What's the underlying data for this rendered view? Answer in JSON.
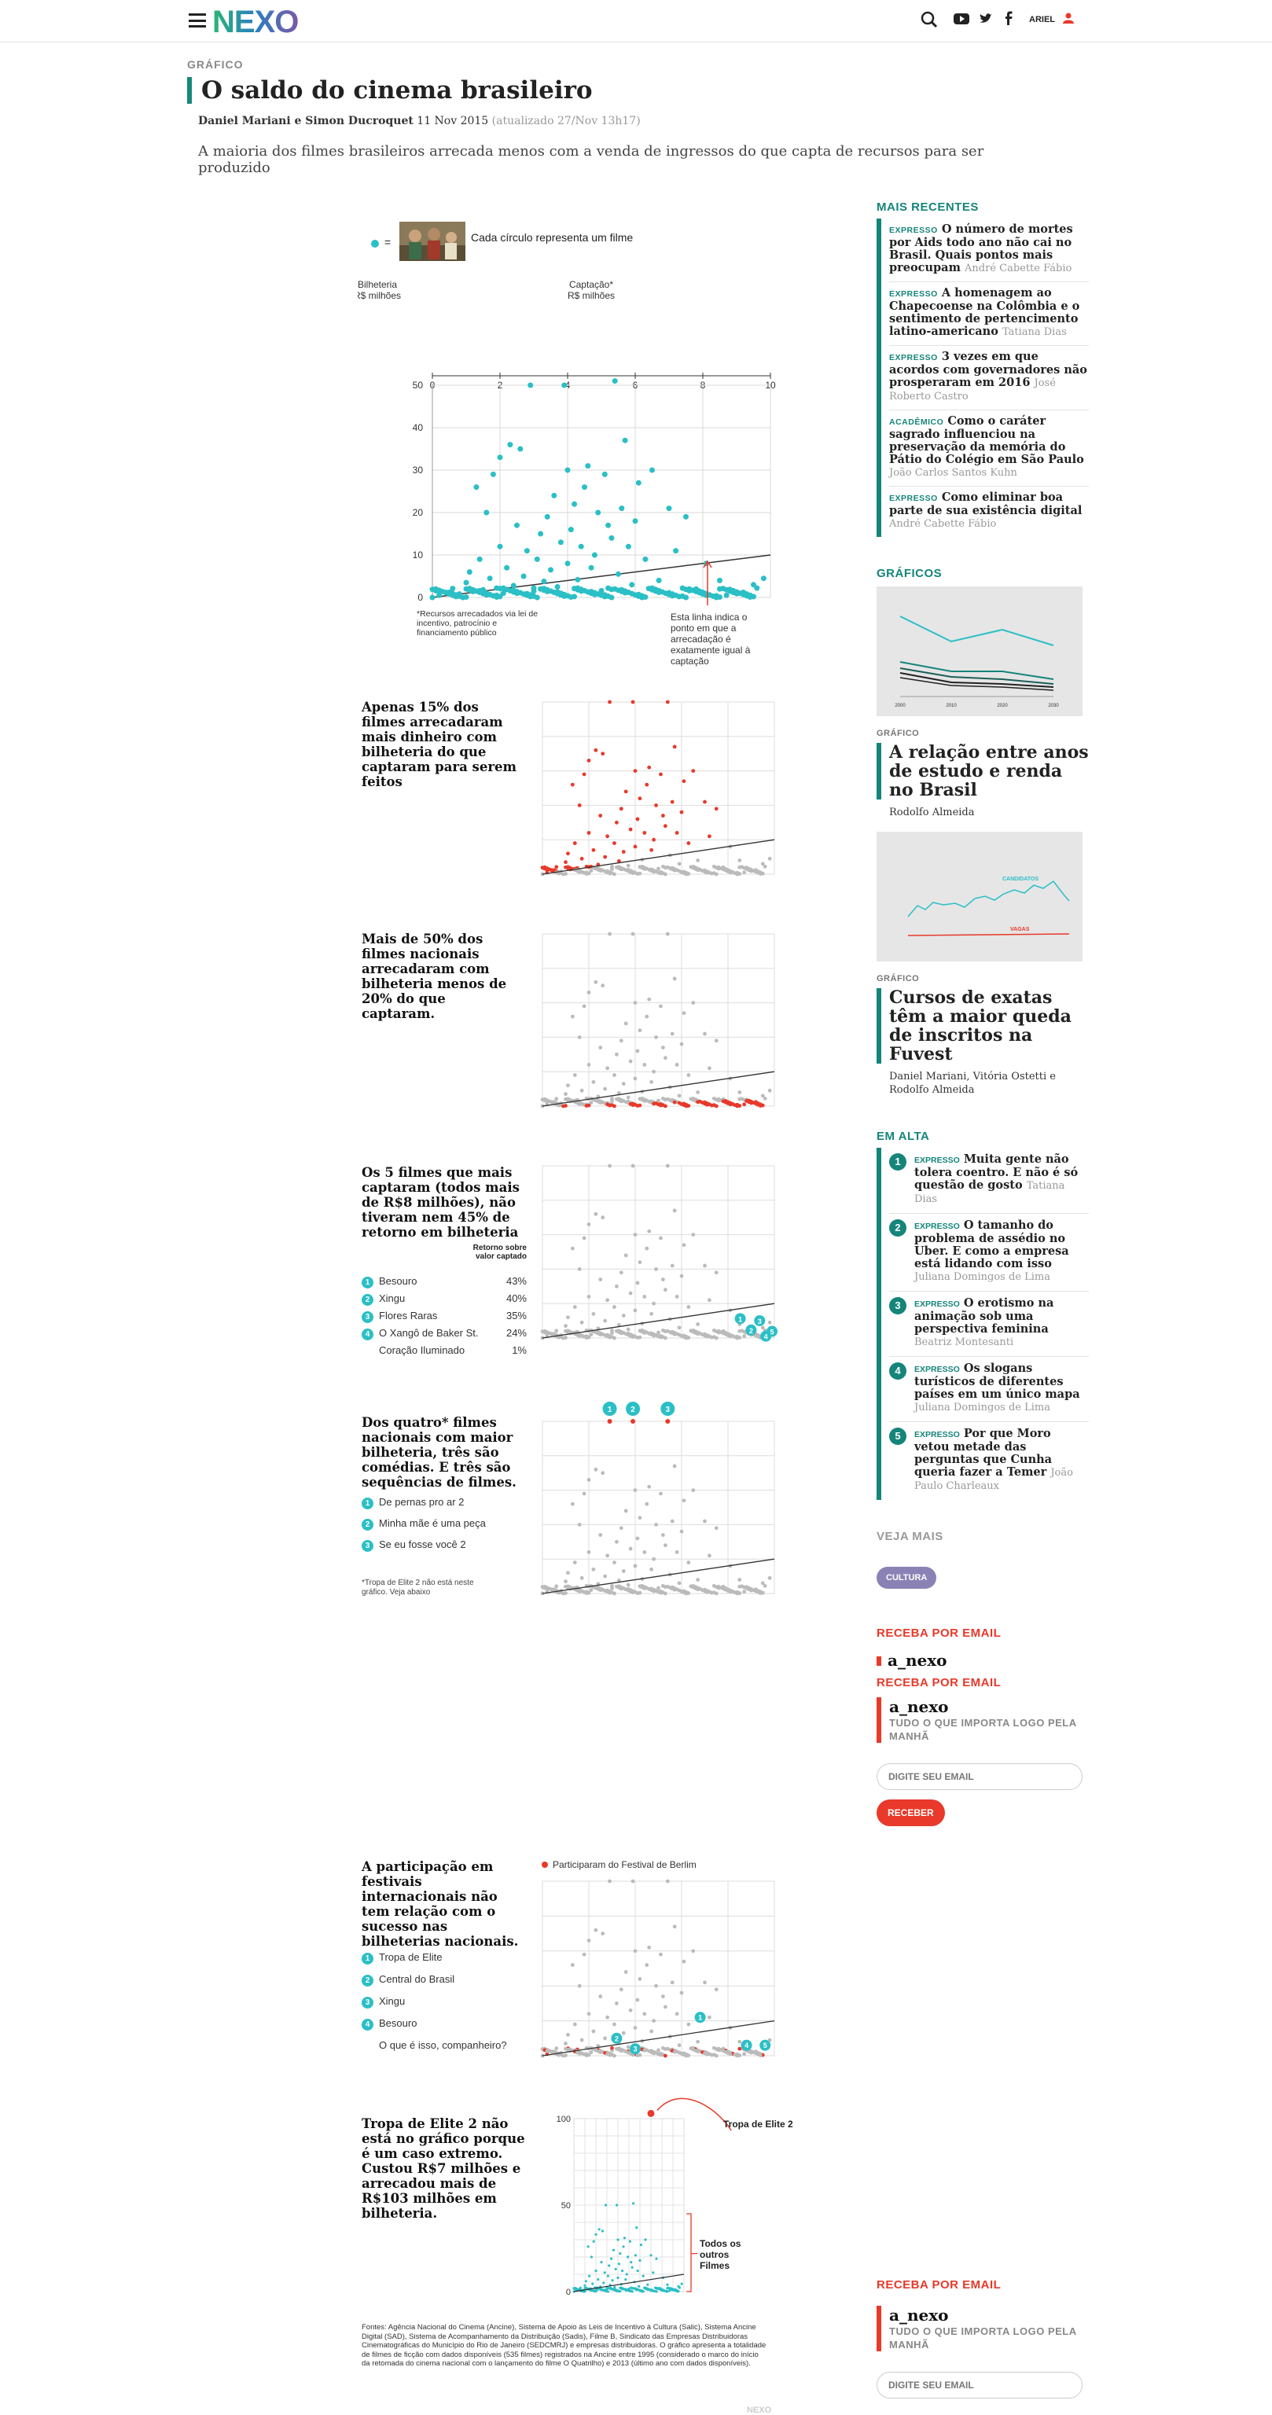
{
  "topbar": {
    "logo": "NEXO",
    "user": "ARIEL"
  },
  "article": {
    "kicker": "GRÁFICO",
    "title": "O saldo do cinema brasileiro",
    "authors": "Daniel Mariani e Simon Ducroquet",
    "date": "11 Nov 2015",
    "updated": "(atualizado 27/Nov 13h17)",
    "summary": "A maioria dos filmes brasileiros arrecada menos com a venda de ingressos do que capta de recursos para ser produzido"
  },
  "legend": {
    "eq": "=",
    "text": "Cada círculo representa um filme"
  },
  "main_chart": {
    "ylabel": "Bilheteria",
    "yunit": "R$ milhões",
    "xlabel": "Captação*",
    "xunit": "R$ milhões",
    "footnote": "*Recursos arrecadados via lei de incentivo, patrocínio e financiamento público",
    "line_note": "Esta linha indica o ponto em que a arrecadação é exatamente igual à captação"
  },
  "chart_data": [
    {
      "type": "scatter",
      "x_range": [
        0,
        10
      ],
      "y_range": [
        0,
        50
      ],
      "x_ticks": [
        "0",
        "2",
        "4",
        "6",
        "8",
        "10"
      ],
      "y_ticks": [
        "0",
        "10",
        "20",
        "30",
        "40",
        "50"
      ],
      "reference_line": "y = x",
      "grid": true,
      "points": [
        [
          0.2,
          0.5
        ],
        [
          0.4,
          1.2
        ],
        [
          0.6,
          2.1
        ],
        [
          0.8,
          0.8
        ],
        [
          1.0,
          3.5
        ],
        [
          1.1,
          6.0
        ],
        [
          1.2,
          1.4
        ],
        [
          1.3,
          26
        ],
        [
          1.4,
          9
        ],
        [
          1.5,
          1.8
        ],
        [
          1.6,
          20
        ],
        [
          1.7,
          4.5
        ],
        [
          1.8,
          29
        ],
        [
          1.9,
          2.2
        ],
        [
          2.0,
          12
        ],
        [
          2.0,
          33
        ],
        [
          2.1,
          1.0
        ],
        [
          2.2,
          7
        ],
        [
          2.3,
          36
        ],
        [
          2.4,
          2.8
        ],
        [
          2.5,
          17
        ],
        [
          2.6,
          35
        ],
        [
          2.7,
          5
        ],
        [
          2.8,
          11
        ],
        [
          2.9,
          50
        ],
        [
          3.0,
          1.5
        ],
        [
          3.1,
          9
        ],
        [
          3.2,
          15
        ],
        [
          3.3,
          3.8
        ],
        [
          3.4,
          19
        ],
        [
          3.5,
          6.5
        ],
        [
          3.6,
          24
        ],
        [
          3.7,
          2.5
        ],
        [
          3.8,
          13
        ],
        [
          3.9,
          50
        ],
        [
          4.0,
          8
        ],
        [
          4.0,
          30
        ],
        [
          4.1,
          16
        ],
        [
          4.2,
          22
        ],
        [
          4.3,
          4.2
        ],
        [
          4.4,
          12
        ],
        [
          4.5,
          26
        ],
        [
          4.6,
          31
        ],
        [
          4.7,
          7
        ],
        [
          4.8,
          10
        ],
        [
          4.9,
          20
        ],
        [
          5.0,
          1.6
        ],
        [
          5.1,
          29
        ],
        [
          5.2,
          17
        ],
        [
          5.3,
          14
        ],
        [
          5.4,
          51
        ],
        [
          5.5,
          5.5
        ],
        [
          5.6,
          21
        ],
        [
          5.7,
          37
        ],
        [
          5.8,
          12
        ],
        [
          5.9,
          3
        ],
        [
          6.0,
          18
        ],
        [
          6.1,
          27
        ],
        [
          6.3,
          9
        ],
        [
          6.5,
          30
        ],
        [
          6.7,
          4
        ],
        [
          7.0,
          21
        ],
        [
          7.2,
          11
        ],
        [
          7.5,
          19
        ],
        [
          7.8,
          2
        ],
        [
          8.1,
          8
        ],
        [
          8.5,
          4
        ],
        [
          8.7,
          0.5
        ],
        [
          9.2,
          1.2
        ],
        [
          9.5,
          3
        ],
        [
          9.8,
          4.5
        ]
      ]
    },
    {
      "type": "scatter",
      "caption": "Apenas 15% dos filmes arrecadaram mais dinheiro com bilheteria do que captaram para serem feitos",
      "highlight": "bilheteria > captação"
    },
    {
      "type": "scatter",
      "caption": "Mais de 50% dos filmes nacionais arrecadaram com bilheteria menos de 20% do que captaram.",
      "highlight": "bilheteria < 20% da captação"
    },
    {
      "type": "scatter",
      "caption": "Os 5 filmes que mais captaram (todos mais de R$8 milhões), não tiveram nem 45% de retorno em bilheteria",
      "table_header": "Retorno sobre valor captado",
      "rows": [
        {
          "n": "1",
          "film": "Besouro",
          "ret": "43%"
        },
        {
          "n": "2",
          "film": "Xingu",
          "ret": "40%"
        },
        {
          "n": "3",
          "film": "Flores Raras",
          "ret": "35%"
        },
        {
          "n": "4",
          "film": "O Xangô de Baker St.",
          "ret": "24%"
        },
        {
          "n": "5",
          "film": "Coração Iluminado",
          "ret": "1%"
        }
      ]
    },
    {
      "type": "scatter",
      "caption": "Dos quatro* filmes nacionais com maior bilheteria, três são comédias. E três são sequências de filmes.",
      "rows": [
        {
          "n": "1",
          "film": "De pernas pro ar 2"
        },
        {
          "n": "2",
          "film": "Minha mãe é uma peça"
        },
        {
          "n": "3",
          "film": "Se eu fosse você 2"
        }
      ],
      "note": "*Tropa de Elite 2 não está neste gráfico. Veja abaixo"
    },
    {
      "type": "scatter",
      "caption": "A participação em festivais internacionais não tem relação com o sucesso nas bilheterias nacionais.",
      "legend": "Participaram do Festival de Berlim",
      "rows": [
        {
          "n": "1",
          "film": "Tropa de Elite"
        },
        {
          "n": "2",
          "film": "Central do Brasil"
        },
        {
          "n": "3",
          "film": "Xingu"
        },
        {
          "n": "4",
          "film": "Besouro"
        },
        {
          "n": "5",
          "film": "O que é isso, companheiro?"
        }
      ]
    },
    {
      "type": "scatter",
      "caption": "Tropa de Elite 2 não está no gráfico porque é um caso extremo. Custou R$7 milhões e arrecadou mais de R$103 milhões em bilheteria.",
      "y_ticks": [
        "0",
        "50",
        "100"
      ],
      "outlier_label": "Tropa de Elite 2",
      "bracket_label": "Todos os outros Filmes"
    }
  ],
  "sources": "Fontes: Agência Nacional do Cinema (Ancine), Sistema de Apoio às Leis de Incentivo à Cultura (Salic), Sistema Ancine Digital (SAD), Sistema de Acompanhamento da Distribuição (Sadis), Filme B, Sindicato das Empresas Distribuidoras Cinematográficas do Município do Rio de Janeiro (SEDCMRJ) e empresas distribuidoras. O gráfico apresenta a totalidade de filmes de ficção com dados disponíveis (535 filmes) registrados na Ancine entre 1995 (considerado o marco do início da retomada do cinema nacional com o lançamento do filme O Quatrilho) e 2013 (último ano com dados disponíveis).",
  "watermark": "NEXO",
  "sidebar": {
    "recent_title": "MAIS RECENTES",
    "recent": [
      {
        "k": "EXPRESSO",
        "t": "O número de mortes por Aids todo ano não cai no Brasil. Quais pontos mais preocupam",
        "a": "André Cabette Fábio"
      },
      {
        "k": "EXPRESSO",
        "t": "A homenagem ao Chapecoense na Colômbia e o sentimento de pertencimento latino-americano",
        "a": "Tatiana Dias"
      },
      {
        "k": "EXPRESSO",
        "t": "3 vezes em que acordos com governadores não prosperaram em 2016",
        "a": "José Roberto Castro"
      },
      {
        "k": "ACADÊMICO",
        "t": "Como o caráter sagrado influenciou na preservação da memória do Pátio do Colégio em São Paulo",
        "a": "João Carlos Santos Kuhn"
      },
      {
        "k": "EXPRESSO",
        "t": "Como eliminar boa parte de sua existência digital",
        "a": "André Cabette Fábio"
      }
    ],
    "graphs_title": "GRÁFICOS",
    "card1": {
      "years": [
        "2000",
        "2010",
        "2020",
        "2030"
      ],
      "k": "GRÁFICO",
      "t": "A relação entre anos de estudo e renda no Brasil",
      "a": "Rodolfo Almeida"
    },
    "card2": {
      "l1": "CANDIDATOS",
      "l2": "VAGAS",
      "k": "GRÁFICO",
      "t": "Cursos de exatas têm a maior queda de inscritos na Fuvest",
      "a": "Daniel Mariani, Vitória Ostetti e Rodolfo Almeida"
    },
    "trending_title": "EM ALTA",
    "trending": [
      {
        "n": "1",
        "k": "EXPRESSO",
        "t": "Muita gente não tolera coentro. E não é só questão de gosto",
        "a": "Tatiana Dias"
      },
      {
        "n": "2",
        "k": "EXPRESSO",
        "t": "O tamanho do problema de assédio no Uber. E como a empresa está lidando com isso",
        "a": "Juliana Domingos de Lima"
      },
      {
        "n": "3",
        "k": "EXPRESSO",
        "t": "O erotismo na animação sob uma perspectiva feminina",
        "a": "Beatriz Montesanti"
      },
      {
        "n": "4",
        "k": "EXPRESSO",
        "t": "Os slogans turísticos de diferentes países em um único mapa",
        "a": "Juliana Domingos de Lima"
      },
      {
        "n": "5",
        "k": "EXPRESSO",
        "t": "Por que Moro vetou metade das perguntas que Cunha queria fazer a Temer",
        "a": "João Paulo Charleaux"
      }
    ],
    "see_more": "VEJA MAIS",
    "tag": "CULTURA",
    "email_title": "RECEBA POR EMAIL",
    "anexo": "a_nexo",
    "email_title2": "RECEBA POR EMAIL",
    "nl_title": "a_nexo",
    "nl_sub": "TUDO O QUE IMPORTA LOGO PELA MANHÃ",
    "email_placeholder": "DIGITE SEU EMAIL",
    "submit": "RECEBER",
    "email_title3": "RECEBA POR EMAIL",
    "nl_title2": "a_nexo",
    "nl_sub2": "TUDO O QUE IMPORTA LOGO PELA MANHÃ",
    "email_placeholder2": "DIGITE SEU EMAIL"
  }
}
